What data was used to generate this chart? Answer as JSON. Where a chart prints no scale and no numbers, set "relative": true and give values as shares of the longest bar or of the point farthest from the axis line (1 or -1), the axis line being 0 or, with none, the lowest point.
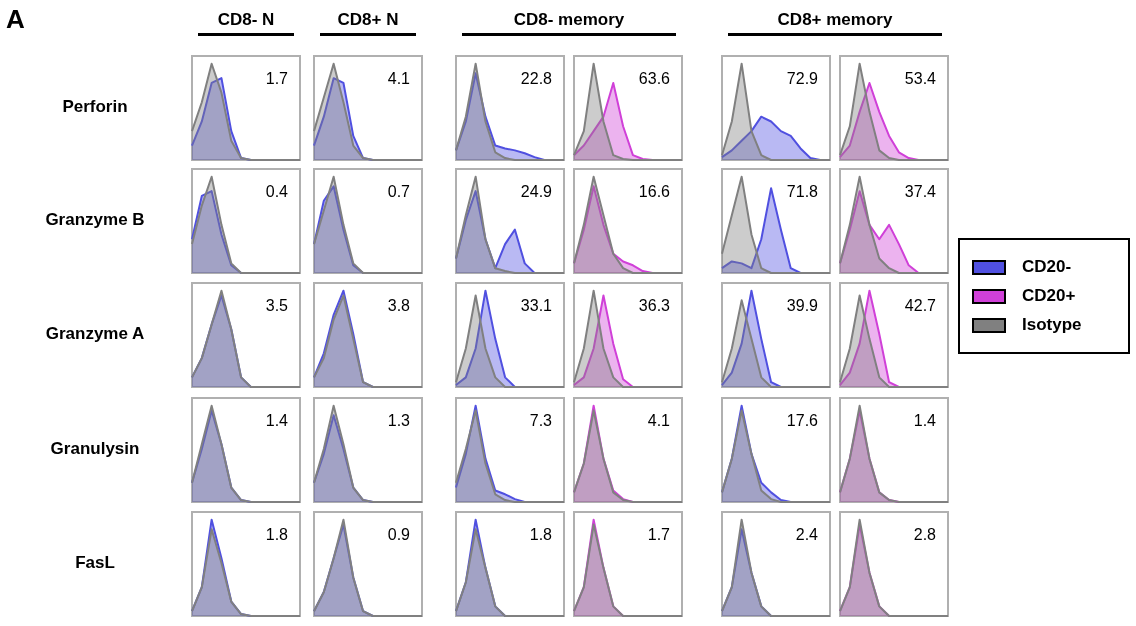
{
  "chart_data": [
    {
      "type": "other",
      "title": "A"
    },
    {
      "type": "area",
      "relative": true,
      "legend": "right",
      "title": "CD8- N",
      "ylabel": "Perforin",
      "annotations": [
        "1.7"
      ],
      "categories": [
        null,
        null,
        null,
        null,
        null,
        null,
        null,
        null,
        null,
        null,
        null,
        null
      ],
      "series": [
        {
          "name": "CD20-",
          "color": "#5050e0",
          "values": [
            0.15,
            0.4,
            0.8,
            0.85,
            0.3,
            0.02,
            0,
            0,
            0,
            0,
            0,
            0
          ]
        },
        {
          "name": "Isotype",
          "color": "#808080",
          "values": [
            0.3,
            0.6,
            1,
            0.7,
            0.2,
            0.02,
            0,
            0,
            0,
            0,
            0,
            0
          ]
        }
      ]
    },
    {
      "type": "area",
      "relative": true,
      "legend": "right",
      "title": "CD8+ N",
      "annotations": [
        "4.1"
      ],
      "categories": [
        null,
        null,
        null,
        null,
        null,
        null,
        null,
        null,
        null,
        null,
        null,
        null
      ],
      "series": [
        {
          "name": "CD20-",
          "color": "#5050e0",
          "values": [
            0.15,
            0.45,
            0.85,
            0.8,
            0.25,
            0.02,
            0,
            0,
            0,
            0,
            0,
            0
          ]
        },
        {
          "name": "Isotype",
          "color": "#808080",
          "values": [
            0.3,
            0.65,
            1,
            0.6,
            0.15,
            0.02,
            0,
            0,
            0,
            0,
            0,
            0
          ]
        }
      ]
    },
    {
      "type": "area",
      "relative": true,
      "legend": "right",
      "title": "CD8- memory",
      "annotations": [
        "22.8"
      ],
      "categories": [
        null,
        null,
        null,
        null,
        null,
        null,
        null,
        null,
        null,
        null,
        null,
        null
      ],
      "series": [
        {
          "name": "CD20-",
          "color": "#5050e0",
          "values": [
            0.1,
            0.4,
            0.9,
            0.45,
            0.15,
            0.12,
            0.1,
            0.07,
            0.03,
            0,
            0,
            0
          ]
        },
        {
          "name": "Isotype",
          "color": "#808080",
          "values": [
            0.1,
            0.45,
            1,
            0.4,
            0.08,
            0.02,
            0,
            0,
            0,
            0,
            0,
            0
          ]
        }
      ]
    },
    {
      "type": "area",
      "relative": true,
      "legend": "right",
      "annotations": [
        "63.6"
      ],
      "categories": [
        null,
        null,
        null,
        null,
        null,
        null,
        null,
        null,
        null,
        null,
        null,
        null
      ],
      "series": [
        {
          "name": "CD20+",
          "color": "#d040d8",
          "values": [
            0.05,
            0.15,
            0.3,
            0.45,
            0.8,
            0.35,
            0.05,
            0.01,
            0,
            0,
            0,
            0
          ]
        },
        {
          "name": "Isotype",
          "color": "#808080",
          "values": [
            0.05,
            0.3,
            1,
            0.4,
            0.05,
            0.01,
            0,
            0,
            0,
            0,
            0,
            0
          ]
        }
      ]
    },
    {
      "type": "area",
      "relative": true,
      "legend": "right",
      "title": "CD8+ memory",
      "annotations": [
        "72.9"
      ],
      "categories": [
        null,
        null,
        null,
        null,
        null,
        null,
        null,
        null,
        null,
        null,
        null,
        null
      ],
      "series": [
        {
          "name": "CD20-",
          "color": "#5050e0",
          "values": [
            0.03,
            0.1,
            0.2,
            0.3,
            0.45,
            0.4,
            0.3,
            0.25,
            0.12,
            0.02,
            0,
            0
          ]
        },
        {
          "name": "Isotype",
          "color": "#808080",
          "values": [
            0.05,
            0.4,
            1,
            0.3,
            0.05,
            0,
            0,
            0,
            0,
            0,
            0,
            0
          ]
        }
      ]
    },
    {
      "type": "area",
      "relative": true,
      "legend": "right",
      "annotations": [
        "53.4"
      ],
      "categories": [
        null,
        null,
        null,
        null,
        null,
        null,
        null,
        null,
        null,
        null,
        null,
        null
      ],
      "series": [
        {
          "name": "CD20+",
          "color": "#d040d8",
          "values": [
            0.03,
            0.15,
            0.5,
            0.8,
            0.5,
            0.25,
            0.08,
            0.02,
            0,
            0,
            0,
            0
          ]
        },
        {
          "name": "Isotype",
          "color": "#808080",
          "values": [
            0.05,
            0.35,
            1,
            0.5,
            0.1,
            0.02,
            0,
            0,
            0,
            0,
            0,
            0
          ]
        }
      ]
    },
    {
      "type": "area",
      "relative": true,
      "legend": "right",
      "ylabel": "Granzyme B",
      "annotations": [
        "0.4"
      ],
      "categories": [
        null,
        null,
        null,
        null,
        null,
        null,
        null,
        null,
        null,
        null,
        null,
        null
      ],
      "series": [
        {
          "name": "CD20-",
          "color": "#5050e0",
          "values": [
            0.35,
            0.8,
            0.85,
            0.4,
            0.08,
            0,
            0,
            0,
            0,
            0,
            0,
            0
          ]
        },
        {
          "name": "Isotype",
          "color": "#808080",
          "values": [
            0.3,
            0.7,
            1,
            0.5,
            0.1,
            0,
            0,
            0,
            0,
            0,
            0,
            0
          ]
        }
      ]
    },
    {
      "type": "area",
      "relative": true,
      "legend": "right",
      "annotations": [
        "0.7"
      ],
      "categories": [
        null,
        null,
        null,
        null,
        null,
        null,
        null,
        null,
        null,
        null,
        null,
        null
      ],
      "series": [
        {
          "name": "CD20-",
          "color": "#5050e0",
          "values": [
            0.3,
            0.75,
            0.9,
            0.45,
            0.08,
            0,
            0,
            0,
            0,
            0,
            0,
            0
          ]
        },
        {
          "name": "Isotype",
          "color": "#808080",
          "values": [
            0.3,
            0.65,
            1,
            0.5,
            0.1,
            0,
            0,
            0,
            0,
            0,
            0,
            0
          ]
        }
      ]
    },
    {
      "type": "area",
      "relative": true,
      "legend": "right",
      "annotations": [
        "24.9"
      ],
      "categories": [
        null,
        null,
        null,
        null,
        null,
        null,
        null,
        null,
        null,
        null,
        null,
        null
      ],
      "series": [
        {
          "name": "CD20-",
          "color": "#5050e0",
          "values": [
            0.15,
            0.55,
            0.85,
            0.35,
            0.05,
            0.3,
            0.45,
            0.1,
            0,
            0,
            0,
            0
          ]
        },
        {
          "name": "Isotype",
          "color": "#808080",
          "values": [
            0.15,
            0.6,
            1,
            0.35,
            0.05,
            0.02,
            0,
            0,
            0,
            0,
            0,
            0
          ]
        }
      ]
    },
    {
      "type": "area",
      "relative": true,
      "legend": "right",
      "annotations": [
        "16.6"
      ],
      "categories": [
        null,
        null,
        null,
        null,
        null,
        null,
        null,
        null,
        null,
        null,
        null,
        null
      ],
      "series": [
        {
          "name": "CD20+",
          "color": "#d040d8",
          "values": [
            0.1,
            0.45,
            0.9,
            0.5,
            0.2,
            0.12,
            0.08,
            0.02,
            0,
            0,
            0,
            0
          ]
        },
        {
          "name": "Isotype",
          "color": "#808080",
          "values": [
            0.1,
            0.5,
            1,
            0.6,
            0.2,
            0.05,
            0,
            0,
            0,
            0,
            0,
            0
          ]
        }
      ]
    },
    {
      "type": "area",
      "relative": true,
      "legend": "right",
      "annotations": [
        "71.8"
      ],
      "categories": [
        null,
        null,
        null,
        null,
        null,
        null,
        null,
        null,
        null,
        null,
        null,
        null
      ],
      "series": [
        {
          "name": "CD20-",
          "color": "#5050e0",
          "values": [
            0.05,
            0.12,
            0.1,
            0.05,
            0.35,
            0.88,
            0.45,
            0.05,
            0,
            0,
            0,
            0
          ]
        },
        {
          "name": "Isotype",
          "color": "#808080",
          "values": [
            0.2,
            0.6,
            1,
            0.4,
            0.05,
            0,
            0,
            0,
            0,
            0,
            0,
            0
          ]
        }
      ]
    },
    {
      "type": "area",
      "relative": true,
      "legend": "right",
      "annotations": [
        "37.4"
      ],
      "categories": [
        null,
        null,
        null,
        null,
        null,
        null,
        null,
        null,
        null,
        null,
        null,
        null
      ],
      "series": [
        {
          "name": "CD20+",
          "color": "#d040d8",
          "values": [
            0.1,
            0.45,
            0.85,
            0.5,
            0.35,
            0.5,
            0.3,
            0.08,
            0,
            0,
            0,
            0
          ]
        },
        {
          "name": "Isotype",
          "color": "#808080",
          "values": [
            0.1,
            0.5,
            1,
            0.5,
            0.15,
            0.05,
            0,
            0,
            0,
            0,
            0,
            0
          ]
        }
      ]
    },
    {
      "type": "area",
      "relative": true,
      "legend": "right",
      "ylabel": "Granzyme A",
      "annotations": [
        "3.5"
      ],
      "categories": [
        null,
        null,
        null,
        null,
        null,
        null,
        null,
        null,
        null,
        null,
        null,
        null
      ],
      "series": [
        {
          "name": "CD20-",
          "color": "#5050e0",
          "values": [
            0.1,
            0.3,
            0.65,
            0.95,
            0.6,
            0.1,
            0,
            0,
            0,
            0,
            0,
            0
          ]
        },
        {
          "name": "Isotype",
          "color": "#808080",
          "values": [
            0.1,
            0.3,
            0.65,
            1,
            0.6,
            0.1,
            0,
            0,
            0,
            0,
            0,
            0
          ]
        }
      ]
    },
    {
      "type": "area",
      "relative": true,
      "legend": "right",
      "annotations": [
        "3.8"
      ],
      "categories": [
        null,
        null,
        null,
        null,
        null,
        null,
        null,
        null,
        null,
        null,
        null,
        null
      ],
      "series": [
        {
          "name": "CD20-",
          "color": "#5050e0",
          "values": [
            0.1,
            0.35,
            0.75,
            1,
            0.55,
            0.05,
            0,
            0,
            0,
            0,
            0,
            0
          ]
        },
        {
          "name": "Isotype",
          "color": "#808080",
          "values": [
            0.1,
            0.3,
            0.7,
            0.95,
            0.5,
            0.05,
            0,
            0,
            0,
            0,
            0,
            0
          ]
        }
      ]
    },
    {
      "type": "area",
      "relative": true,
      "legend": "right",
      "annotations": [
        "33.1"
      ],
      "categories": [
        null,
        null,
        null,
        null,
        null,
        null,
        null,
        null,
        null,
        null,
        null,
        null
      ],
      "series": [
        {
          "name": "CD20-",
          "color": "#5050e0",
          "values": [
            0.02,
            0.1,
            0.4,
            1,
            0.5,
            0.1,
            0,
            0,
            0,
            0,
            0,
            0
          ]
        },
        {
          "name": "Isotype",
          "color": "#808080",
          "values": [
            0.05,
            0.4,
            0.95,
            0.4,
            0.1,
            0,
            0,
            0,
            0,
            0,
            0,
            0
          ]
        }
      ]
    },
    {
      "type": "area",
      "relative": true,
      "legend": "right",
      "annotations": [
        "36.3"
      ],
      "categories": [
        null,
        null,
        null,
        null,
        null,
        null,
        null,
        null,
        null,
        null,
        null,
        null
      ],
      "series": [
        {
          "name": "CD20+",
          "color": "#d040d8",
          "values": [
            0.02,
            0.1,
            0.4,
            0.95,
            0.45,
            0.08,
            0,
            0,
            0,
            0,
            0,
            0
          ]
        },
        {
          "name": "Isotype",
          "color": "#808080",
          "values": [
            0.05,
            0.4,
            1,
            0.4,
            0.1,
            0,
            0,
            0,
            0,
            0,
            0,
            0
          ]
        }
      ]
    },
    {
      "type": "area",
      "relative": true,
      "legend": "right",
      "annotations": [
        "39.9"
      ],
      "categories": [
        null,
        null,
        null,
        null,
        null,
        null,
        null,
        null,
        null,
        null,
        null,
        null
      ],
      "series": [
        {
          "name": "CD20-",
          "color": "#5050e0",
          "values": [
            0.02,
            0.15,
            0.45,
            1,
            0.5,
            0.05,
            0,
            0,
            0,
            0,
            0,
            0
          ]
        },
        {
          "name": "Isotype",
          "color": "#808080",
          "values": [
            0.05,
            0.4,
            0.9,
            0.5,
            0.1,
            0,
            0,
            0,
            0,
            0,
            0,
            0
          ]
        }
      ]
    },
    {
      "type": "area",
      "relative": true,
      "legend": "right",
      "annotations": [
        "42.7"
      ],
      "categories": [
        null,
        null,
        null,
        null,
        null,
        null,
        null,
        null,
        null,
        null,
        null,
        null
      ],
      "series": [
        {
          "name": "CD20+",
          "color": "#d040d8",
          "values": [
            0.02,
            0.15,
            0.45,
            1,
            0.55,
            0.05,
            0,
            0,
            0,
            0,
            0,
            0
          ]
        },
        {
          "name": "Isotype",
          "color": "#808080",
          "values": [
            0.05,
            0.4,
            0.95,
            0.5,
            0.1,
            0,
            0,
            0,
            0,
            0,
            0,
            0
          ]
        }
      ]
    },
    {
      "type": "area",
      "relative": true,
      "legend": "right",
      "ylabel": "Granulysin",
      "annotations": [
        "1.4"
      ],
      "categories": [
        null,
        null,
        null,
        null,
        null,
        null,
        null,
        null,
        null,
        null,
        null,
        null
      ],
      "series": [
        {
          "name": "CD20-",
          "color": "#5050e0",
          "values": [
            0.2,
            0.55,
            0.95,
            0.6,
            0.15,
            0.02,
            0,
            0,
            0,
            0,
            0,
            0
          ]
        },
        {
          "name": "Isotype",
          "color": "#808080",
          "values": [
            0.2,
            0.6,
            1,
            0.6,
            0.15,
            0.02,
            0,
            0,
            0,
            0,
            0,
            0
          ]
        }
      ]
    },
    {
      "type": "area",
      "relative": true,
      "legend": "right",
      "annotations": [
        "1.3"
      ],
      "categories": [
        null,
        null,
        null,
        null,
        null,
        null,
        null,
        null,
        null,
        null,
        null,
        null
      ],
      "series": [
        {
          "name": "CD20-",
          "color": "#5050e0",
          "values": [
            0.2,
            0.5,
            0.9,
            0.55,
            0.15,
            0.02,
            0,
            0,
            0,
            0,
            0,
            0
          ]
        },
        {
          "name": "Isotype",
          "color": "#808080",
          "values": [
            0.2,
            0.55,
            1,
            0.6,
            0.15,
            0.02,
            0,
            0,
            0,
            0,
            0,
            0
          ]
        }
      ]
    },
    {
      "type": "area",
      "relative": true,
      "legend": "right",
      "annotations": [
        "7.3"
      ],
      "categories": [
        null,
        null,
        null,
        null,
        null,
        null,
        null,
        null,
        null,
        null,
        null,
        null
      ],
      "series": [
        {
          "name": "CD20-",
          "color": "#5050e0",
          "values": [
            0.15,
            0.5,
            1,
            0.45,
            0.12,
            0.08,
            0.03,
            0,
            0,
            0,
            0,
            0
          ]
        },
        {
          "name": "Isotype",
          "color": "#808080",
          "values": [
            0.2,
            0.55,
            0.95,
            0.4,
            0.08,
            0.02,
            0,
            0,
            0,
            0,
            0,
            0
          ]
        }
      ]
    },
    {
      "type": "area",
      "relative": true,
      "legend": "right",
      "annotations": [
        "4.1"
      ],
      "categories": [
        null,
        null,
        null,
        null,
        null,
        null,
        null,
        null,
        null,
        null,
        null,
        null
      ],
      "series": [
        {
          "name": "CD20+",
          "color": "#d040d8",
          "values": [
            0.1,
            0.4,
            1,
            0.45,
            0.12,
            0.03,
            0,
            0,
            0,
            0,
            0,
            0
          ]
        },
        {
          "name": "Isotype",
          "color": "#808080",
          "values": [
            0.1,
            0.4,
            0.95,
            0.45,
            0.1,
            0.02,
            0,
            0,
            0,
            0,
            0,
            0
          ]
        }
      ]
    },
    {
      "type": "area",
      "relative": true,
      "legend": "right",
      "annotations": [
        "17.6"
      ],
      "categories": [
        null,
        null,
        null,
        null,
        null,
        null,
        null,
        null,
        null,
        null,
        null,
        null
      ],
      "series": [
        {
          "name": "CD20-",
          "color": "#5050e0",
          "values": [
            0.1,
            0.45,
            1,
            0.5,
            0.2,
            0.1,
            0.02,
            0,
            0,
            0,
            0,
            0
          ]
        },
        {
          "name": "Isotype",
          "color": "#808080",
          "values": [
            0.1,
            0.45,
            0.95,
            0.5,
            0.12,
            0.03,
            0,
            0,
            0,
            0,
            0,
            0
          ]
        }
      ]
    },
    {
      "type": "area",
      "relative": true,
      "legend": "right",
      "annotations": [
        "1.4"
      ],
      "categories": [
        null,
        null,
        null,
        null,
        null,
        null,
        null,
        null,
        null,
        null,
        null,
        null
      ],
      "series": [
        {
          "name": "CD20+",
          "color": "#d040d8",
          "values": [
            0.1,
            0.45,
            0.95,
            0.45,
            0.1,
            0.02,
            0,
            0,
            0,
            0,
            0,
            0
          ]
        },
        {
          "name": "Isotype",
          "color": "#808080",
          "values": [
            0.1,
            0.45,
            1,
            0.45,
            0.1,
            0.02,
            0,
            0,
            0,
            0,
            0,
            0
          ]
        }
      ]
    },
    {
      "type": "area",
      "relative": true,
      "legend": "right",
      "ylabel": "FasL",
      "annotations": [
        "1.8"
      ],
      "categories": [
        null,
        null,
        null,
        null,
        null,
        null,
        null,
        null,
        null,
        null,
        null,
        null
      ],
      "series": [
        {
          "name": "CD20-",
          "color": "#5050e0",
          "values": [
            0.05,
            0.3,
            1,
            0.6,
            0.15,
            0.02,
            0,
            0,
            0,
            0,
            0,
            0
          ]
        },
        {
          "name": "Isotype",
          "color": "#808080",
          "values": [
            0.05,
            0.3,
            0.9,
            0.55,
            0.15,
            0.02,
            0,
            0,
            0,
            0,
            0,
            0
          ]
        }
      ]
    },
    {
      "type": "area",
      "relative": true,
      "legend": "right",
      "annotations": [
        "0.9"
      ],
      "categories": [
        null,
        null,
        null,
        null,
        null,
        null,
        null,
        null,
        null,
        null,
        null,
        null
      ],
      "series": [
        {
          "name": "CD20-",
          "color": "#5050e0",
          "values": [
            0.05,
            0.25,
            0.6,
            0.95,
            0.4,
            0.05,
            0,
            0,
            0,
            0,
            0,
            0
          ]
        },
        {
          "name": "Isotype",
          "color": "#808080",
          "values": [
            0.05,
            0.25,
            0.6,
            1,
            0.4,
            0.05,
            0,
            0,
            0,
            0,
            0,
            0
          ]
        }
      ]
    },
    {
      "type": "area",
      "relative": true,
      "legend": "right",
      "annotations": [
        "1.8"
      ],
      "categories": [
        null,
        null,
        null,
        null,
        null,
        null,
        null,
        null,
        null,
        null,
        null,
        null
      ],
      "series": [
        {
          "name": "CD20-",
          "color": "#5050e0",
          "values": [
            0.05,
            0.35,
            1,
            0.5,
            0.1,
            0,
            0,
            0,
            0,
            0,
            0,
            0
          ]
        },
        {
          "name": "Isotype",
          "color": "#808080",
          "values": [
            0.05,
            0.35,
            0.9,
            0.5,
            0.1,
            0,
            0,
            0,
            0,
            0,
            0,
            0
          ]
        }
      ]
    },
    {
      "type": "area",
      "relative": true,
      "legend": "right",
      "annotations": [
        "1.7"
      ],
      "categories": [
        null,
        null,
        null,
        null,
        null,
        null,
        null,
        null,
        null,
        null,
        null,
        null
      ],
      "series": [
        {
          "name": "CD20+",
          "color": "#d040d8",
          "values": [
            0.05,
            0.3,
            1,
            0.5,
            0.1,
            0,
            0,
            0,
            0,
            0,
            0,
            0
          ]
        },
        {
          "name": "Isotype",
          "color": "#808080",
          "values": [
            0.05,
            0.3,
            0.95,
            0.5,
            0.1,
            0,
            0,
            0,
            0,
            0,
            0,
            0
          ]
        }
      ]
    },
    {
      "type": "area",
      "relative": true,
      "legend": "right",
      "annotations": [
        "2.4"
      ],
      "categories": [
        null,
        null,
        null,
        null,
        null,
        null,
        null,
        null,
        null,
        null,
        null,
        null
      ],
      "series": [
        {
          "name": "CD20-",
          "color": "#5050e0",
          "values": [
            0.05,
            0.3,
            0.9,
            0.45,
            0.1,
            0,
            0,
            0,
            0,
            0,
            0,
            0
          ]
        },
        {
          "name": "Isotype",
          "color": "#808080",
          "values": [
            0.05,
            0.3,
            1,
            0.45,
            0.1,
            0,
            0,
            0,
            0,
            0,
            0,
            0
          ]
        }
      ]
    },
    {
      "type": "area",
      "relative": true,
      "legend": "right",
      "annotations": [
        "2.8"
      ],
      "categories": [
        null,
        null,
        null,
        null,
        null,
        null,
        null,
        null,
        null,
        null,
        null,
        null
      ],
      "series": [
        {
          "name": "CD20+",
          "color": "#d040d8",
          "values": [
            0.05,
            0.3,
            0.95,
            0.45,
            0.1,
            0,
            0,
            0,
            0,
            0,
            0,
            0
          ]
        },
        {
          "name": "Isotype",
          "color": "#808080",
          "values": [
            0.05,
            0.3,
            1,
            0.45,
            0.1,
            0,
            0,
            0,
            0,
            0,
            0,
            0
          ]
        }
      ]
    }
  ]
}
